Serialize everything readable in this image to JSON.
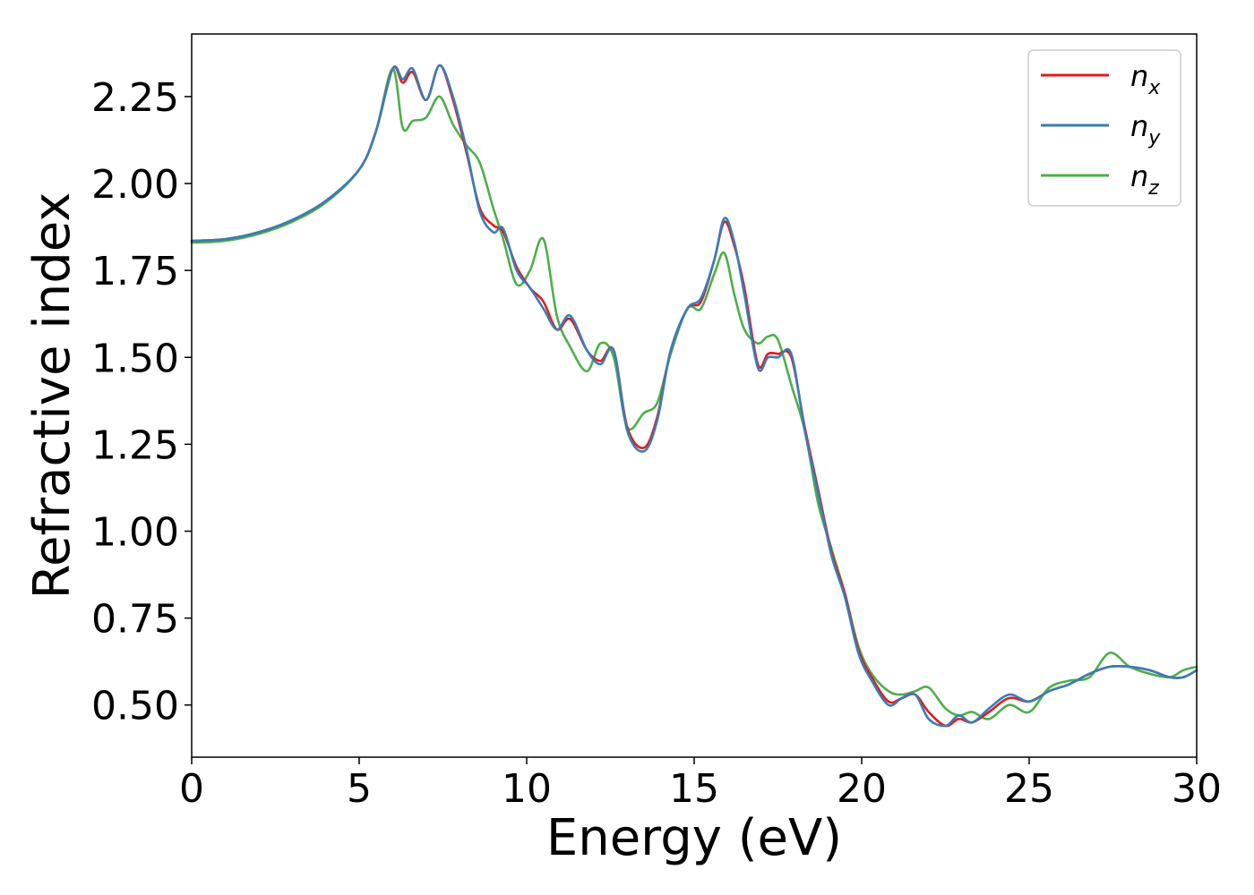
{
  "chart_data": {
    "type": "line",
    "title": "",
    "xlabel": "Energy (eV)",
    "ylabel": "Refractive index",
    "xlim": [
      0,
      30
    ],
    "ylim": [
      0.35,
      2.43
    ],
    "xticks": [
      0,
      5,
      10,
      15,
      20,
      25,
      30
    ],
    "xtick_labels": [
      "0",
      "5",
      "10",
      "15",
      "20",
      "25",
      "30"
    ],
    "yticks": [
      0.5,
      0.75,
      1.0,
      1.25,
      1.5,
      1.75,
      2.0,
      2.25
    ],
    "ytick_labels": [
      "0.50",
      "0.75",
      "1.00",
      "1.25",
      "1.50",
      "1.75",
      "2.00",
      "2.25"
    ],
    "grid": false,
    "legend_position": "top-right",
    "series": [
      {
        "name": "n_x",
        "legend_base": "n",
        "legend_sub": "x",
        "color": "#e41a1c",
        "x": [
          0,
          1,
          2,
          3,
          4,
          5,
          5.5,
          6,
          6.3,
          6.6,
          7,
          7.4,
          7.8,
          8.2,
          8.6,
          9,
          9.3,
          9.7,
          10.1,
          10.5,
          10.9,
          11.3,
          11.8,
          12.2,
          12.6,
          13,
          13.5,
          13.9,
          14.3,
          14.8,
          15.2,
          15.6,
          15.9,
          16.2,
          16.5,
          16.9,
          17.2,
          17.5,
          17.9,
          18.3,
          18.7,
          19.1,
          19.5,
          19.9,
          20.3,
          20.8,
          21.2,
          21.6,
          22,
          22.5,
          22.9,
          23.3,
          23.8,
          24.4,
          25,
          25.6,
          26.2,
          26.8,
          27.4,
          28,
          28.6,
          29.2,
          29.6,
          30
        ],
        "y": [
          1.835,
          1.84,
          1.86,
          1.895,
          1.95,
          2.04,
          2.15,
          2.33,
          2.29,
          2.32,
          2.24,
          2.34,
          2.24,
          2.09,
          1.93,
          1.88,
          1.86,
          1.76,
          1.7,
          1.66,
          1.58,
          1.61,
          1.52,
          1.49,
          1.52,
          1.3,
          1.24,
          1.33,
          1.52,
          1.64,
          1.66,
          1.78,
          1.89,
          1.82,
          1.7,
          1.48,
          1.51,
          1.51,
          1.5,
          1.3,
          1.12,
          0.94,
          0.82,
          0.66,
          0.58,
          0.51,
          0.52,
          0.53,
          0.48,
          0.44,
          0.46,
          0.45,
          0.48,
          0.52,
          0.51,
          0.54,
          0.56,
          0.59,
          0.61,
          0.61,
          0.6,
          0.58,
          0.58,
          0.6
        ]
      },
      {
        "name": "n_y",
        "legend_base": "n",
        "legend_sub": "y",
        "color": "#377eb8",
        "x": [
          0,
          1,
          2,
          3,
          4,
          5,
          5.5,
          6,
          6.3,
          6.6,
          7,
          7.4,
          7.8,
          8.2,
          8.6,
          9,
          9.3,
          9.7,
          10.1,
          10.5,
          10.9,
          11.3,
          11.8,
          12.2,
          12.6,
          13,
          13.5,
          13.9,
          14.3,
          14.8,
          15.2,
          15.6,
          15.9,
          16.2,
          16.5,
          16.9,
          17.2,
          17.5,
          17.9,
          18.3,
          18.7,
          19.1,
          19.5,
          19.9,
          20.3,
          20.8,
          21.2,
          21.6,
          22,
          22.5,
          22.9,
          23.3,
          23.8,
          24.4,
          25,
          25.6,
          26.2,
          26.8,
          27.4,
          28,
          28.6,
          29.2,
          29.6,
          30
        ],
        "y": [
          1.835,
          1.84,
          1.86,
          1.895,
          1.95,
          2.04,
          2.15,
          2.33,
          2.3,
          2.33,
          2.24,
          2.34,
          2.25,
          2.1,
          1.92,
          1.86,
          1.87,
          1.75,
          1.7,
          1.64,
          1.58,
          1.62,
          1.52,
          1.48,
          1.52,
          1.29,
          1.23,
          1.32,
          1.52,
          1.64,
          1.67,
          1.78,
          1.9,
          1.83,
          1.68,
          1.47,
          1.5,
          1.5,
          1.51,
          1.29,
          1.11,
          0.93,
          0.81,
          0.65,
          0.57,
          0.5,
          0.52,
          0.53,
          0.46,
          0.44,
          0.47,
          0.45,
          0.49,
          0.53,
          0.51,
          0.54,
          0.56,
          0.59,
          0.61,
          0.61,
          0.6,
          0.58,
          0.58,
          0.6
        ]
      },
      {
        "name": "n_z",
        "legend_base": "n",
        "legend_sub": "z",
        "color": "#4daf4a",
        "x": [
          0,
          1,
          2,
          3,
          4,
          5,
          5.5,
          6,
          6.3,
          6.6,
          7,
          7.4,
          7.8,
          8.2,
          8.6,
          9,
          9.3,
          9.7,
          10.1,
          10.5,
          10.9,
          11.3,
          11.8,
          12.2,
          12.6,
          13,
          13.5,
          13.9,
          14.3,
          14.8,
          15.2,
          15.6,
          15.9,
          16.2,
          16.5,
          16.9,
          17.2,
          17.5,
          17.9,
          18.3,
          18.7,
          19.1,
          19.5,
          19.9,
          20.3,
          20.8,
          21.2,
          21.6,
          22,
          22.5,
          22.9,
          23.3,
          23.8,
          24.4,
          25,
          25.6,
          26.2,
          26.8,
          27.4,
          28,
          28.6,
          29.2,
          29.6,
          30
        ],
        "y": [
          1.83,
          1.835,
          1.855,
          1.89,
          1.945,
          2.04,
          2.15,
          2.33,
          2.16,
          2.18,
          2.19,
          2.25,
          2.17,
          2.11,
          2.06,
          1.93,
          1.84,
          1.71,
          1.75,
          1.84,
          1.62,
          1.53,
          1.46,
          1.54,
          1.5,
          1.3,
          1.34,
          1.37,
          1.51,
          1.64,
          1.64,
          1.74,
          1.8,
          1.68,
          1.58,
          1.54,
          1.56,
          1.55,
          1.42,
          1.29,
          1.08,
          0.95,
          0.82,
          0.67,
          0.59,
          0.54,
          0.53,
          0.54,
          0.55,
          0.49,
          0.47,
          0.48,
          0.46,
          0.5,
          0.48,
          0.55,
          0.57,
          0.58,
          0.65,
          0.61,
          0.59,
          0.58,
          0.6,
          0.61
        ]
      }
    ]
  }
}
